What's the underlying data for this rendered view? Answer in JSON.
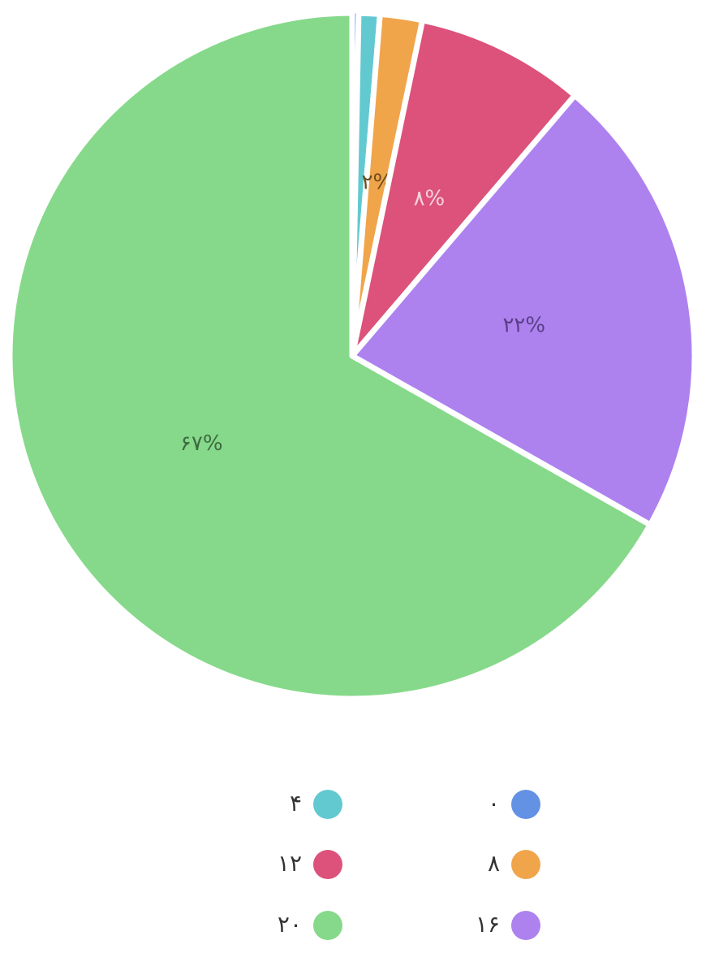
{
  "chart_data": {
    "type": "pie",
    "categories": [
      "۰",
      "۴",
      "۸",
      "۱۲",
      "۱۶",
      "۲۰"
    ],
    "values": [
      0.3,
      1,
      2,
      8,
      22,
      67
    ],
    "value_labels": [
      null,
      null,
      "۲%",
      "۸%",
      "۲۲%",
      "۶۷%"
    ],
    "colors": [
      "#6391e4",
      "#62c9d1",
      "#f0a54b",
      "#dc527b",
      "#ad82ef",
      "#86d98a"
    ],
    "label_colors": [
      "#2f4a7a",
      "#2d6468",
      "#6d4c1e",
      "#f6d3de",
      "#5b3f86",
      "#3d6a40"
    ]
  }
}
